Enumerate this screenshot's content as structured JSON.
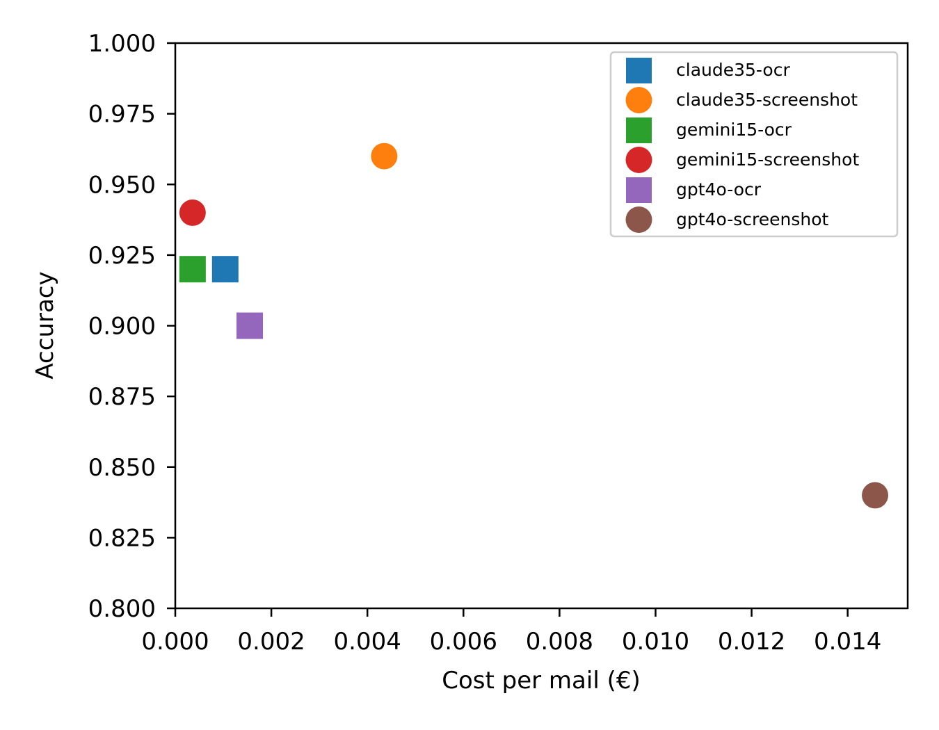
{
  "chart_data": {
    "type": "scatter",
    "title": "",
    "xlabel": "Cost per mail (€)",
    "ylabel": "Accuracy",
    "xlim": [
      0.0,
      0.01525
    ],
    "ylim": [
      0.8,
      1.0
    ],
    "xticks": [
      "0.000",
      "0.002",
      "0.004",
      "0.006",
      "0.008",
      "0.010",
      "0.012",
      "0.014"
    ],
    "yticks": [
      "0.800",
      "0.825",
      "0.850",
      "0.875",
      "0.900",
      "0.925",
      "0.950",
      "0.975",
      "1.000"
    ],
    "grid": false,
    "legend_position": "top-right",
    "series": [
      {
        "name": "claude35-ocr",
        "marker": "square",
        "color": "#1f77b4",
        "x": [
          0.00104
        ],
        "y": [
          0.92
        ]
      },
      {
        "name": "claude35-screenshot",
        "marker": "circle",
        "color": "#ff7f0e",
        "x": [
          0.00435
        ],
        "y": [
          0.96
        ]
      },
      {
        "name": "gemini15-ocr",
        "marker": "square",
        "color": "#2ca02c",
        "x": [
          0.00036
        ],
        "y": [
          0.92
        ]
      },
      {
        "name": "gemini15-screenshot",
        "marker": "circle",
        "color": "#d62728",
        "x": [
          0.00036
        ],
        "y": [
          0.94
        ]
      },
      {
        "name": "gpt4o-ocr",
        "marker": "square",
        "color": "#9467bd",
        "x": [
          0.00155
        ],
        "y": [
          0.9
        ]
      },
      {
        "name": "gpt4o-screenshot",
        "marker": "circle",
        "color": "#8c564b",
        "x": [
          0.01457
        ],
        "y": [
          0.84
        ]
      }
    ]
  }
}
